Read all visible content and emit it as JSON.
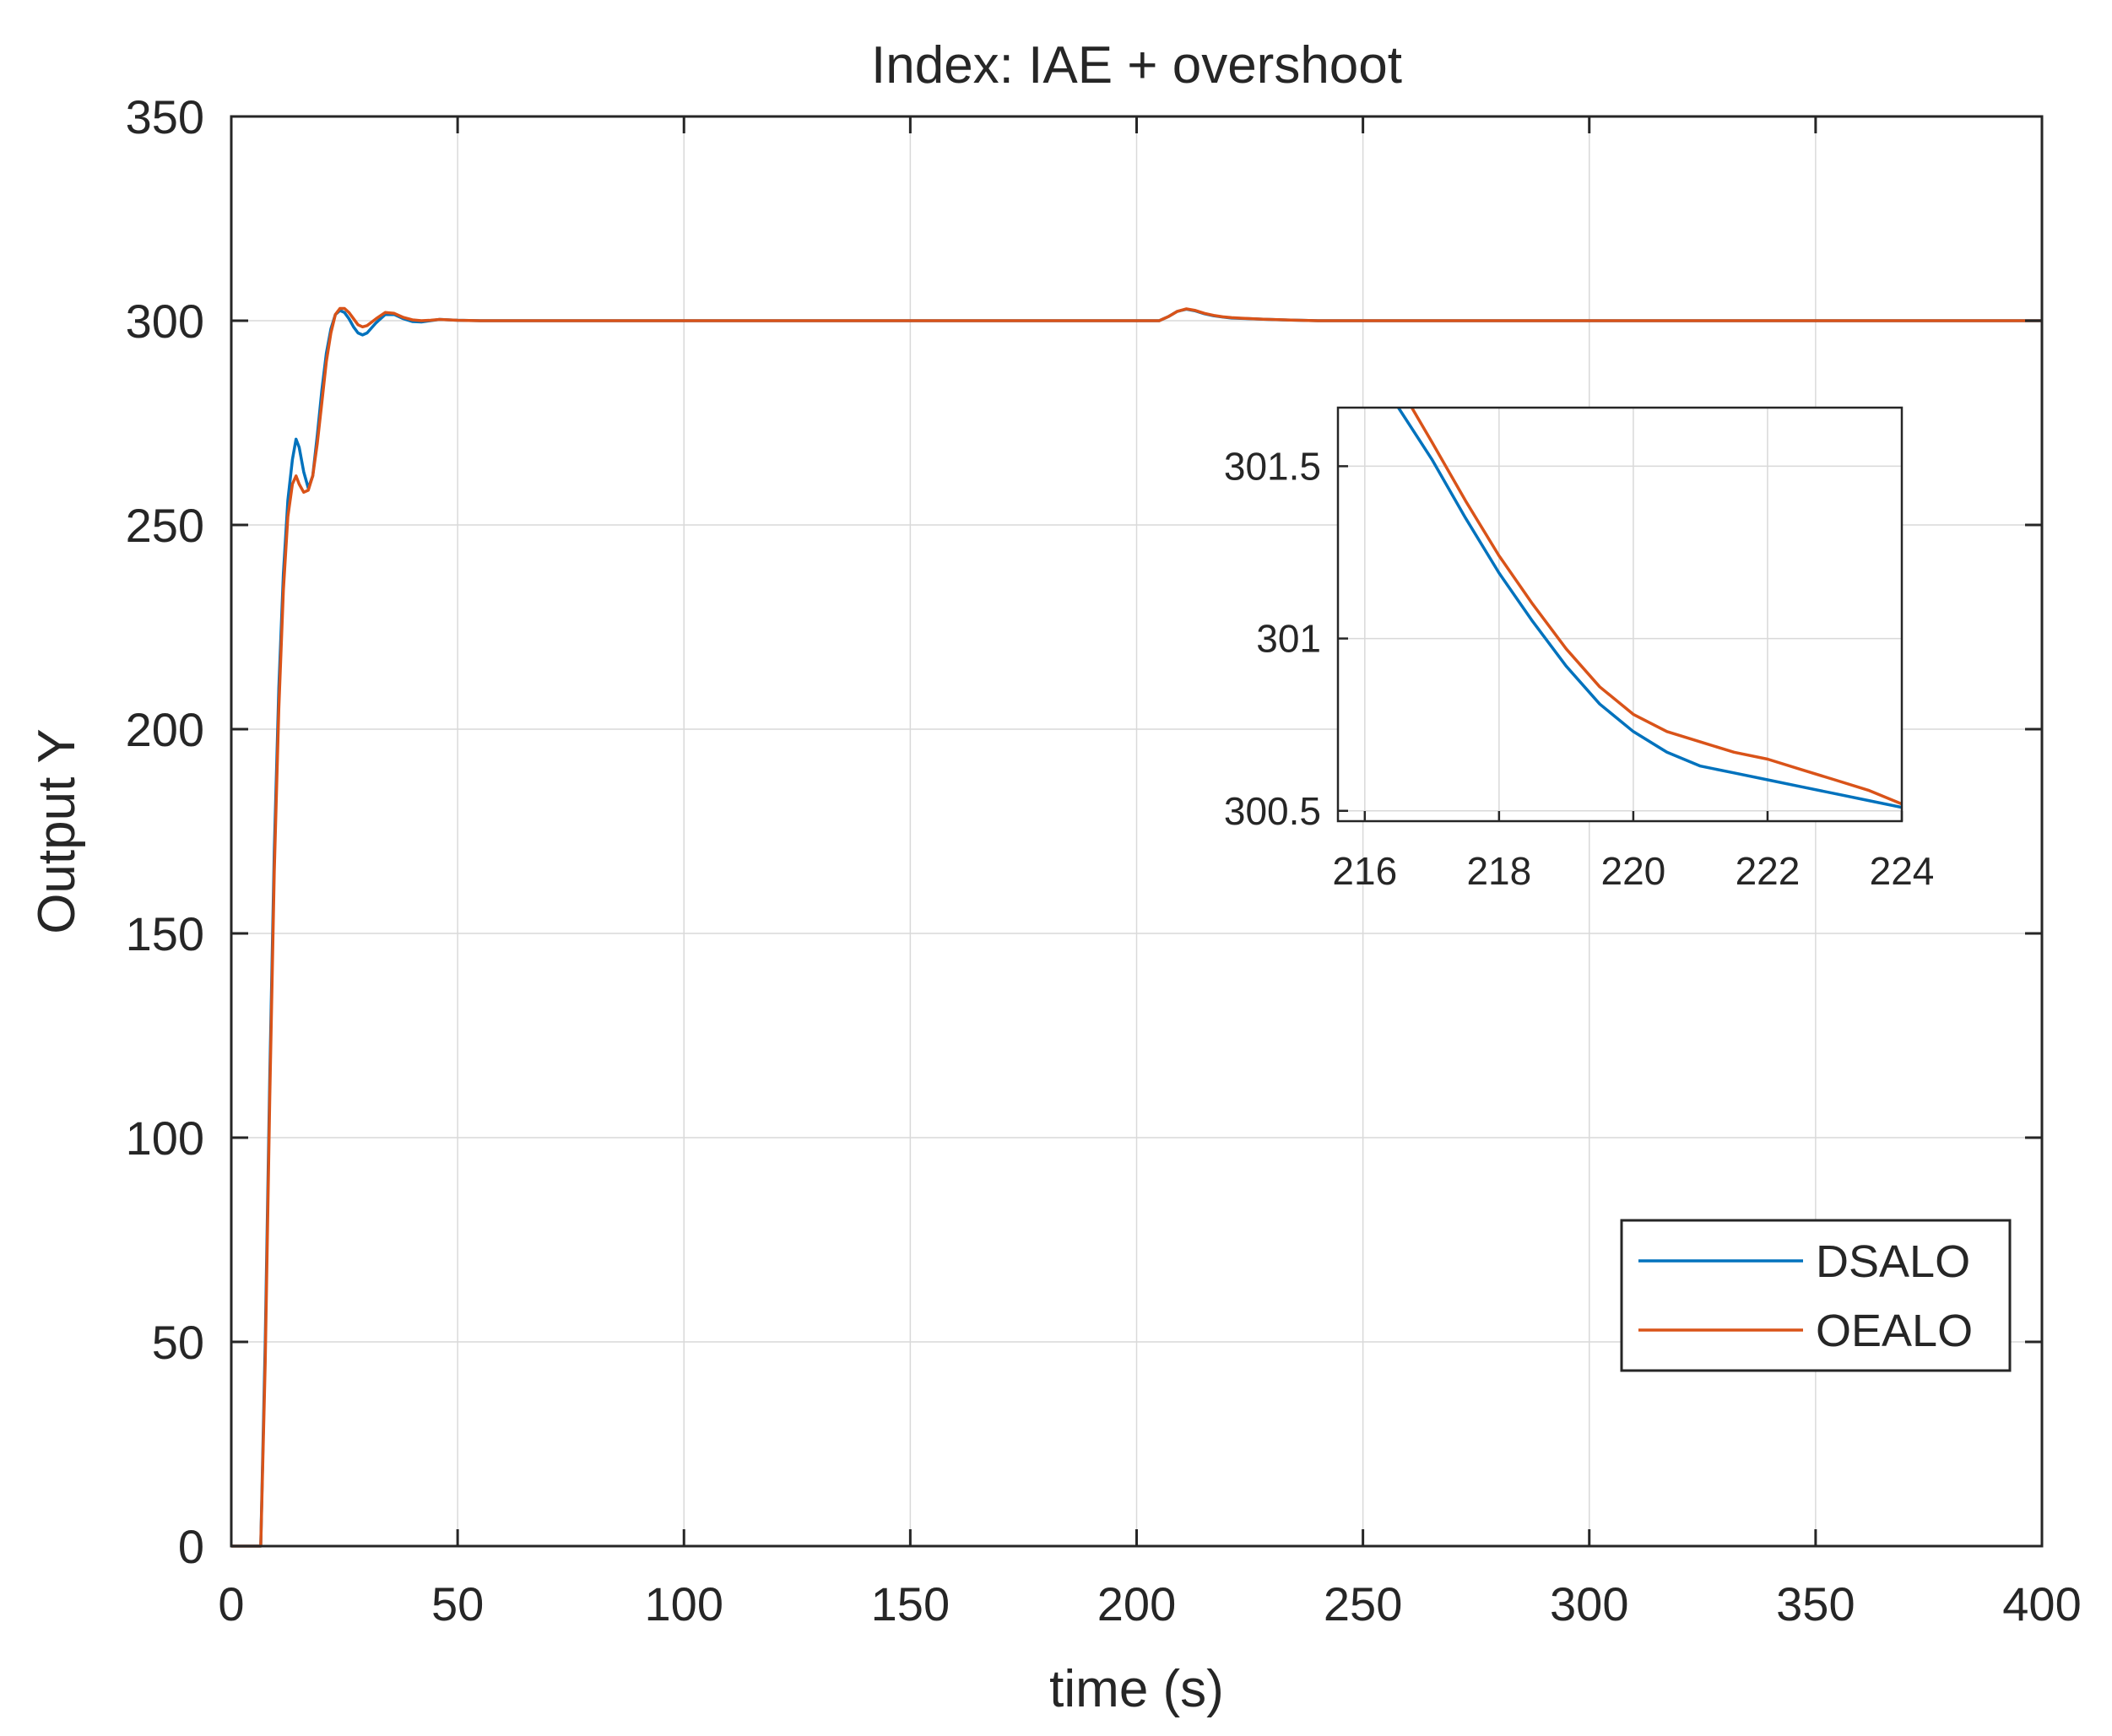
{
  "chart_data": [
    {
      "type": "line",
      "title": "Index: IAE + overshoot",
      "xlabel": "time (s)",
      "ylabel": "Output Y",
      "xlim": [
        0,
        400
      ],
      "ylim": [
        0,
        350
      ],
      "xticks": [
        0,
        50,
        100,
        150,
        200,
        250,
        300,
        350,
        400
      ],
      "yticks": [
        0,
        50,
        100,
        150,
        200,
        250,
        300,
        350
      ],
      "grid": true,
      "legend": {
        "position": "bottom-right"
      },
      "series": [
        {
          "name": "DSALO",
          "color": "#0072BD",
          "x": [
            0,
            6.5,
            7.5,
            8.5,
            9.5,
            10.5,
            11.5,
            12.5,
            13.5,
            14.3,
            15,
            16,
            17,
            18,
            19,
            20,
            21,
            22,
            23,
            24,
            25,
            26,
            27,
            28,
            29,
            30,
            32,
            34,
            36,
            38,
            40,
            42,
            44,
            46,
            50,
            55,
            60,
            205,
            207,
            209,
            211,
            213,
            215,
            217,
            219,
            221,
            223,
            225,
            228,
            232,
            236,
            240,
            260,
            400
          ],
          "y": [
            0,
            0,
            50,
            115,
            170,
            210,
            238,
            256,
            266,
            271,
            269,
            263,
            259,
            262,
            272,
            283,
            292,
            298,
            301.5,
            302.5,
            302,
            300.5,
            298.5,
            297,
            296.5,
            297,
            299.5,
            301.5,
            301.5,
            300.5,
            299.8,
            299.7,
            300,
            300.3,
            300.1,
            300,
            300,
            300,
            301,
            302.3,
            302.8,
            302.4,
            301.7,
            301.2,
            300.9,
            300.65,
            300.55,
            300.5,
            300.35,
            300.2,
            300.1,
            300,
            300,
            300
          ]
        },
        {
          "name": "OEALO",
          "color": "#D95319",
          "x": [
            0,
            6.5,
            7.5,
            8.5,
            9.5,
            10.5,
            11.5,
            12.5,
            13.5,
            14.3,
            15,
            16,
            17,
            18,
            19,
            20,
            21,
            22,
            23,
            24,
            25,
            26,
            27,
            28,
            29,
            30,
            32,
            34,
            36,
            38,
            40,
            42,
            44,
            46,
            50,
            55,
            60,
            205,
            207,
            209,
            211,
            213,
            215,
            217,
            219,
            221,
            223,
            225,
            228,
            232,
            236,
            240,
            260,
            400
          ],
          "y": [
            0,
            0,
            45,
            110,
            165,
            205,
            234,
            252,
            260,
            262,
            260,
            258,
            258.5,
            262,
            270,
            280,
            290,
            297,
            301.5,
            303,
            303,
            302,
            300.5,
            299,
            298.5,
            298.8,
            300.5,
            302,
            301.8,
            300.8,
            300.2,
            300,
            300.1,
            300.3,
            300.1,
            300,
            300,
            300,
            301,
            302.3,
            302.9,
            302.5,
            301.8,
            301.3,
            300.95,
            300.75,
            300.62,
            300.52,
            300.38,
            300.22,
            300.1,
            300,
            300,
            300
          ]
        }
      ]
    },
    {
      "type": "line",
      "title": "",
      "xlabel": "",
      "ylabel": "",
      "xlim": [
        215.6,
        224
      ],
      "ylim": [
        300.47,
        301.67
      ],
      "xticks": [
        216,
        218,
        220,
        222,
        224
      ],
      "yticks": [
        300.5,
        301,
        301.5
      ],
      "ytick_labels": [
        "300.5",
        "301",
        "301.5"
      ],
      "grid": true,
      "series": [
        {
          "name": "DSALO",
          "color": "#0072BD",
          "x": [
            216.5,
            217,
            217.5,
            218,
            218.5,
            219,
            219.5,
            220,
            220.5,
            221,
            221.5,
            222,
            222.5,
            223,
            223.5,
            224
          ],
          "y": [
            301.67,
            301.52,
            301.35,
            301.19,
            301.05,
            300.92,
            300.81,
            300.73,
            300.67,
            300.63,
            300.61,
            300.59,
            300.57,
            300.55,
            300.53,
            300.51
          ]
        },
        {
          "name": "OEALO",
          "color": "#D95319",
          "x": [
            216.7,
            217,
            217.5,
            218,
            218.5,
            219,
            219.5,
            220,
            220.5,
            221,
            221.5,
            222,
            222.5,
            223,
            223.5,
            224
          ],
          "y": [
            301.67,
            301.57,
            301.4,
            301.24,
            301.1,
            300.97,
            300.86,
            300.78,
            300.73,
            300.7,
            300.67,
            300.65,
            300.62,
            300.59,
            300.56,
            300.52
          ]
        }
      ]
    }
  ]
}
